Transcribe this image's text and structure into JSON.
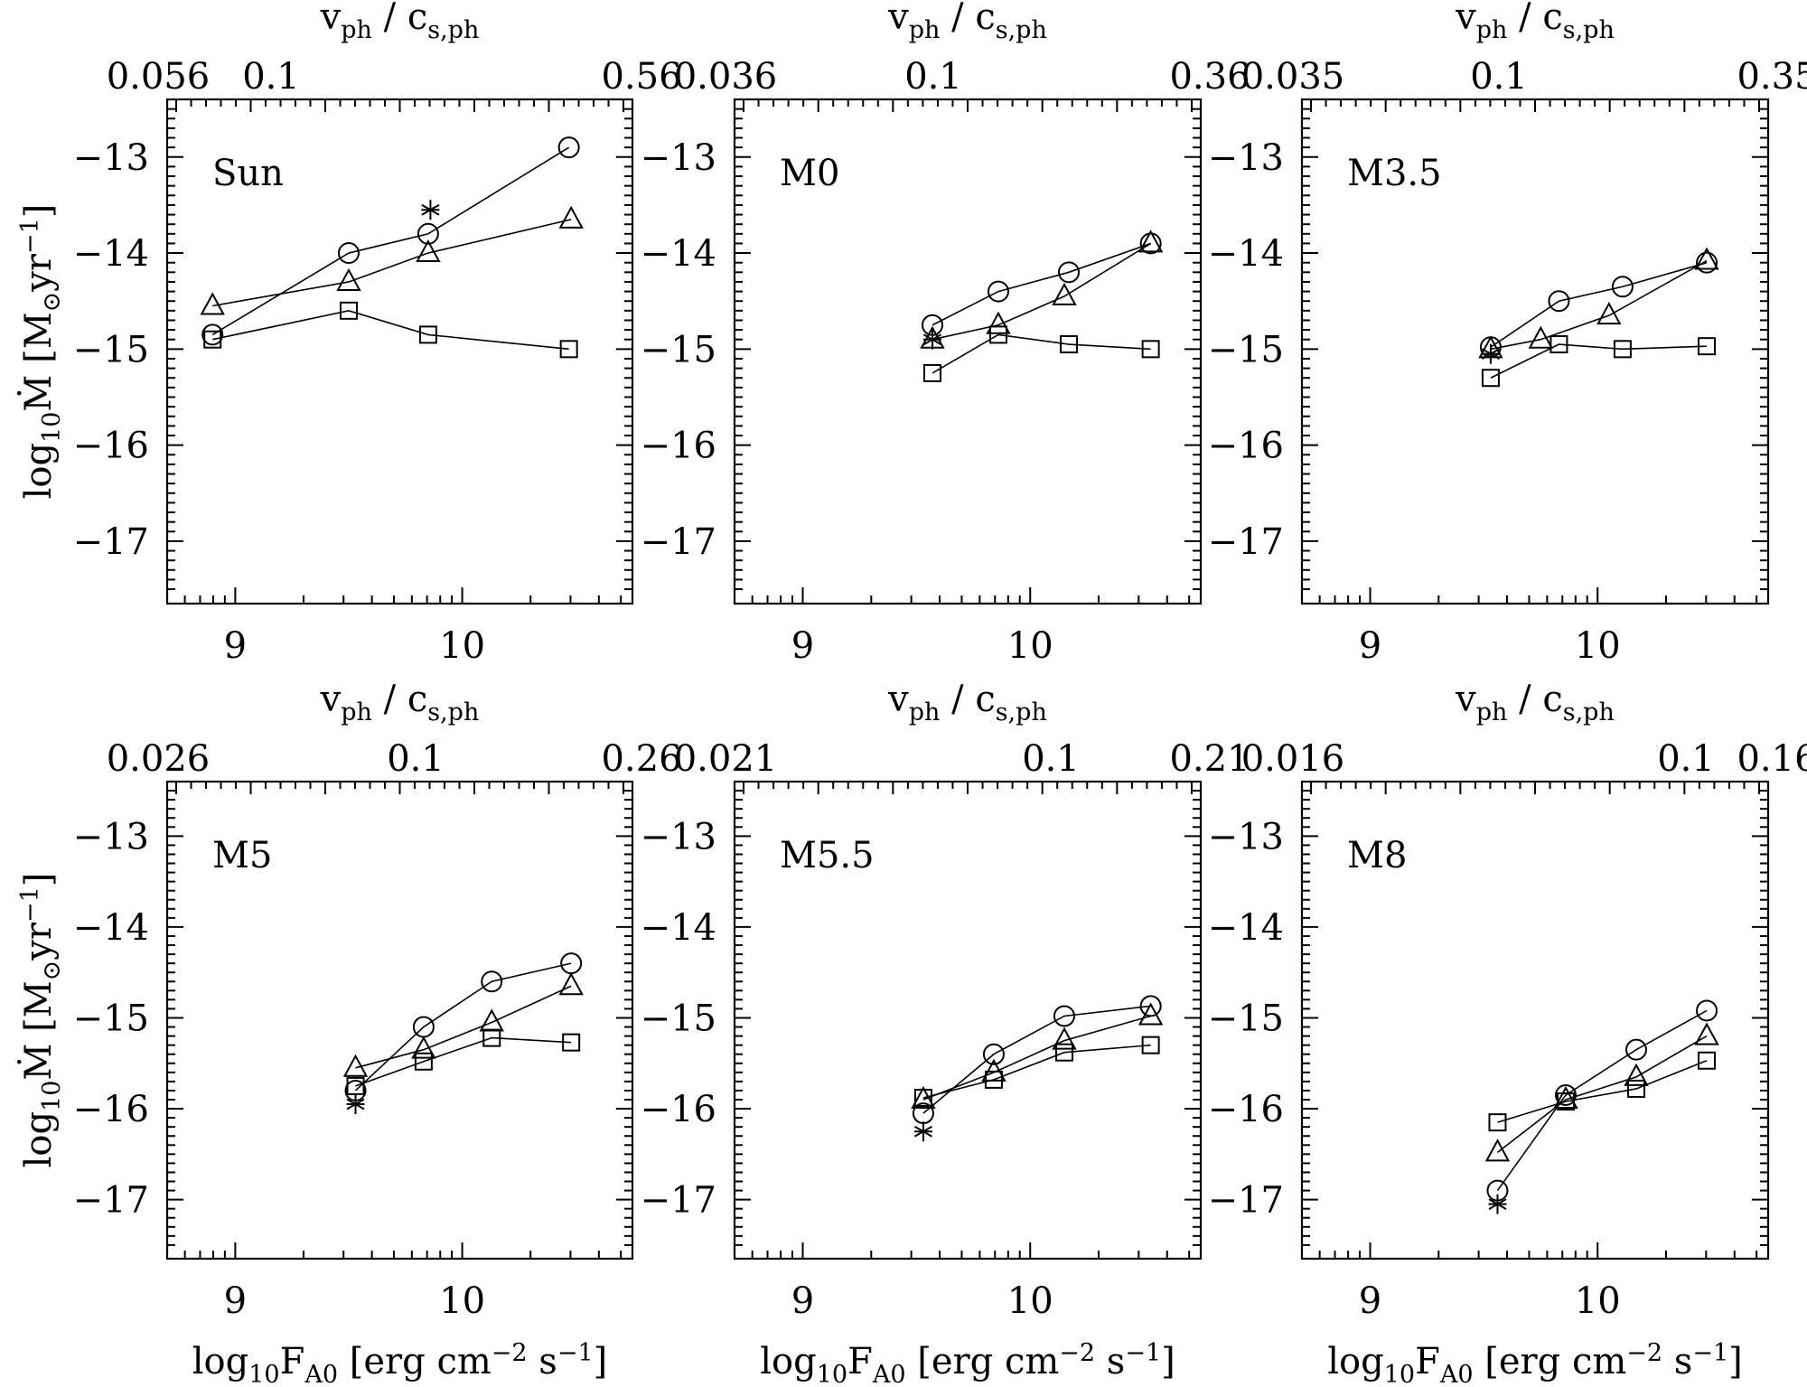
{
  "figure": {
    "xlabel": {
      "main": "log",
      "sub1": "10",
      "var": "F",
      "sub2": "A0",
      "unit_open": " [erg cm",
      "sup1": "−2",
      "unit_mid": " s",
      "sup2": "−1",
      "unit_close": "]"
    },
    "ylabel": {
      "main": "log",
      "sub1": "10",
      "var": "Ṁ [M",
      "sub2": "⊙",
      "unit_mid": "yr",
      "sup": "−1",
      "unit_close": "]"
    },
    "toplabel": {
      "var1": "v",
      "sub1": "ph",
      "sep": " / c",
      "sub2": "s,ph"
    },
    "xtick_labels": [
      "9",
      "10"
    ],
    "ytick_labels": [
      "−13",
      "−14",
      "−15",
      "−16",
      "−17"
    ]
  },
  "chart_data": [
    {
      "type": "line",
      "label": "Sun",
      "xlim": [
        8.7,
        10.75
      ],
      "ylim": [
        -17.65,
        -12.4
      ],
      "top_axis_labels": [
        "0.056",
        "0.1",
        "0.56"
      ],
      "series": [
        {
          "name": "circles",
          "marker": "circle",
          "x": [
            8.9,
            9.5,
            9.85,
            10.47
          ],
          "y": [
            -14.85,
            -14.0,
            -13.8,
            -12.9
          ]
        },
        {
          "name": "triangles",
          "marker": "triangle",
          "x": [
            8.9,
            9.5,
            9.85,
            10.48
          ],
          "y": [
            -14.55,
            -14.3,
            -14.0,
            -13.65
          ]
        },
        {
          "name": "squares",
          "marker": "square",
          "x": [
            8.9,
            9.5,
            9.85,
            10.47
          ],
          "y": [
            -14.9,
            -14.6,
            -14.85,
            -15.0
          ]
        },
        {
          "name": "asterisks",
          "marker": "asterisk",
          "x": [
            9.86
          ],
          "y": [
            -13.55
          ]
        }
      ]
    },
    {
      "type": "line",
      "label": "M0",
      "xlim": [
        8.7,
        10.75
      ],
      "ylim": [
        -17.65,
        -12.4
      ],
      "top_axis_labels": [
        "0.036",
        "0.1",
        "0.36"
      ],
      "series": [
        {
          "name": "circles",
          "marker": "circle",
          "x": [
            9.57,
            9.86,
            10.17,
            10.53
          ],
          "y": [
            -14.75,
            -14.4,
            -14.2,
            -13.9
          ]
        },
        {
          "name": "triangles",
          "marker": "triangle",
          "x": [
            9.57,
            9.86,
            10.15,
            10.53
          ],
          "y": [
            -14.9,
            -14.75,
            -14.45,
            -13.9
          ]
        },
        {
          "name": "squares",
          "marker": "square",
          "x": [
            9.57,
            9.86,
            10.17,
            10.53
          ],
          "y": [
            -15.25,
            -14.85,
            -14.95,
            -15.0
          ]
        },
        {
          "name": "asterisks",
          "marker": "asterisk",
          "x": [
            9.57
          ],
          "y": [
            -14.9
          ]
        }
      ]
    },
    {
      "type": "line",
      "label": "M3.5",
      "xlim": [
        8.7,
        10.75
      ],
      "ylim": [
        -17.65,
        -12.4
      ],
      "top_axis_labels": [
        "0.035",
        "0.1",
        "0.35"
      ],
      "series": [
        {
          "name": "circles",
          "marker": "circle",
          "x": [
            9.53,
            9.83,
            10.11,
            10.48
          ],
          "y": [
            -14.98,
            -14.5,
            -14.35,
            -14.1
          ]
        },
        {
          "name": "triangles",
          "marker": "triangle",
          "x": [
            9.53,
            9.75,
            10.05,
            10.48
          ],
          "y": [
            -15.0,
            -14.9,
            -14.65,
            -14.08
          ]
        },
        {
          "name": "squares",
          "marker": "square",
          "x": [
            9.53,
            9.83,
            10.11,
            10.48
          ],
          "y": [
            -15.3,
            -14.95,
            -15.0,
            -14.97
          ]
        },
        {
          "name": "asterisks",
          "marker": "asterisk",
          "x": [
            9.53
          ],
          "y": [
            -15.05
          ]
        }
      ]
    },
    {
      "type": "line",
      "label": "M5",
      "xlim": [
        8.7,
        10.75
      ],
      "ylim": [
        -17.65,
        -12.4
      ],
      "top_axis_labels": [
        "0.026",
        "0.1",
        "0.26"
      ],
      "series": [
        {
          "name": "circles",
          "marker": "circle",
          "x": [
            9.53,
            9.83,
            10.13,
            10.48
          ],
          "y": [
            -15.8,
            -15.1,
            -14.6,
            -14.4
          ]
        },
        {
          "name": "triangles",
          "marker": "triangle",
          "x": [
            9.53,
            9.83,
            10.13,
            10.48
          ],
          "y": [
            -15.55,
            -15.35,
            -15.05,
            -14.65
          ]
        },
        {
          "name": "squares",
          "marker": "square",
          "x": [
            9.53,
            9.83,
            10.13,
            10.48
          ],
          "y": [
            -15.75,
            -15.48,
            -15.22,
            -15.27
          ]
        },
        {
          "name": "asterisks",
          "marker": "asterisk",
          "x": [
            9.53
          ],
          "y": [
            -15.95
          ]
        }
      ]
    },
    {
      "type": "line",
      "label": "M5.5",
      "xlim": [
        8.7,
        10.75
      ],
      "ylim": [
        -17.65,
        -12.4
      ],
      "top_axis_labels": [
        "0.021",
        "0.1",
        "0.21"
      ],
      "series": [
        {
          "name": "circles",
          "marker": "circle",
          "x": [
            9.53,
            9.84,
            10.15,
            10.53
          ],
          "y": [
            -16.05,
            -15.4,
            -14.98,
            -14.87
          ]
        },
        {
          "name": "triangles",
          "marker": "triangle",
          "x": [
            9.53,
            9.84,
            10.15,
            10.53
          ],
          "y": [
            -15.9,
            -15.6,
            -15.25,
            -14.98
          ]
        },
        {
          "name": "squares",
          "marker": "square",
          "x": [
            9.53,
            9.84,
            10.15,
            10.53
          ],
          "y": [
            -15.88,
            -15.68,
            -15.38,
            -15.3
          ]
        },
        {
          "name": "asterisks",
          "marker": "asterisk",
          "x": [
            9.53
          ],
          "y": [
            -16.25
          ]
        }
      ]
    },
    {
      "type": "line",
      "label": "M8",
      "xlim": [
        8.7,
        10.75
      ],
      "ylim": [
        -17.65,
        -12.4
      ],
      "top_axis_labels": [
        "0.016",
        "0.1",
        "0.16"
      ],
      "series": [
        {
          "name": "circles",
          "marker": "circle",
          "x": [
            9.56,
            9.86,
            10.17,
            10.48
          ],
          "y": [
            -16.9,
            -15.85,
            -15.35,
            -14.92
          ]
        },
        {
          "name": "triangles",
          "marker": "triangle",
          "x": [
            9.56,
            9.86,
            10.17,
            10.48
          ],
          "y": [
            -16.48,
            -15.9,
            -15.65,
            -15.2
          ]
        },
        {
          "name": "squares",
          "marker": "square",
          "x": [
            9.56,
            9.86,
            10.17,
            10.48
          ],
          "y": [
            -16.15,
            -15.92,
            -15.78,
            -15.47
          ]
        },
        {
          "name": "asterisks",
          "marker": "asterisk",
          "x": [
            9.56
          ],
          "y": [
            -17.05
          ]
        }
      ]
    }
  ]
}
